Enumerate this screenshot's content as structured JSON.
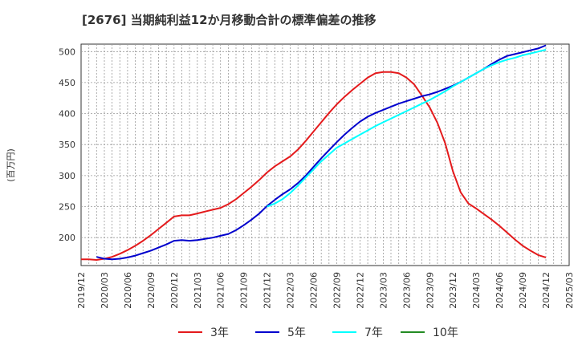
{
  "chart_data": {
    "type": "line",
    "title": "[2676]  当期純利益12か月移動合計の標準偏差の推移",
    "ylabel": "(百万円)",
    "xlabel": "",
    "ylim": [
      155,
      512
    ],
    "yticks": [
      200,
      250,
      300,
      350,
      400,
      450,
      500
    ],
    "x_tick_labels": [
      "2019/12",
      "2020/03",
      "2020/06",
      "2020/09",
      "2020/12",
      "2021/03",
      "2021/06",
      "2021/09",
      "2021/12",
      "2022/03",
      "2022/06",
      "2022/09",
      "2022/12",
      "2023/03",
      "2023/06",
      "2023/09",
      "2023/12",
      "2024/03",
      "2024/06",
      "2024/09",
      "2024/12",
      "2025/03"
    ],
    "grid": true,
    "legend_position": "bottom",
    "series": [
      {
        "name": "3年",
        "color": "#e41a1c",
        "points": [
          [
            "2019/12",
            165
          ],
          [
            "2020/01",
            165
          ],
          [
            "2020/02",
            164
          ],
          [
            "2020/03",
            166
          ],
          [
            "2020/04",
            169
          ],
          [
            "2020/05",
            174
          ],
          [
            "2020/06",
            180
          ],
          [
            "2020/07",
            187
          ],
          [
            "2020/08",
            195
          ],
          [
            "2020/09",
            204
          ],
          [
            "2020/10",
            214
          ],
          [
            "2020/11",
            224
          ],
          [
            "2020/12",
            234
          ],
          [
            "2021/01",
            236
          ],
          [
            "2021/02",
            236
          ],
          [
            "2021/03",
            239
          ],
          [
            "2021/04",
            242
          ],
          [
            "2021/05",
            245
          ],
          [
            "2021/06",
            248
          ],
          [
            "2021/07",
            254
          ],
          [
            "2021/08",
            262
          ],
          [
            "2021/09",
            272
          ],
          [
            "2021/10",
            282
          ],
          [
            "2021/11",
            293
          ],
          [
            "2021/12",
            305
          ],
          [
            "2022/01",
            315
          ],
          [
            "2022/02",
            323
          ],
          [
            "2022/03",
            331
          ],
          [
            "2022/04",
            342
          ],
          [
            "2022/05",
            356
          ],
          [
            "2022/06",
            371
          ],
          [
            "2022/07",
            386
          ],
          [
            "2022/08",
            401
          ],
          [
            "2022/09",
            415
          ],
          [
            "2022/10",
            427
          ],
          [
            "2022/11",
            438
          ],
          [
            "2022/12",
            448
          ],
          [
            "2023/01",
            458
          ],
          [
            "2023/02",
            465
          ],
          [
            "2023/03",
            467
          ],
          [
            "2023/04",
            467
          ],
          [
            "2023/05",
            465
          ],
          [
            "2023/06",
            458
          ],
          [
            "2023/07",
            447
          ],
          [
            "2023/08",
            429
          ],
          [
            "2023/09",
            410
          ],
          [
            "2023/10",
            385
          ],
          [
            "2023/11",
            352
          ],
          [
            "2023/12",
            307
          ],
          [
            "2024/01",
            273
          ],
          [
            "2024/02",
            255
          ],
          [
            "2024/03",
            247
          ],
          [
            "2024/04",
            238
          ],
          [
            "2024/05",
            229
          ],
          [
            "2024/06",
            219
          ],
          [
            "2024/07",
            208
          ],
          [
            "2024/08",
            197
          ],
          [
            "2024/09",
            187
          ],
          [
            "2024/10",
            179
          ],
          [
            "2024/11",
            172
          ],
          [
            "2024/12",
            168
          ]
        ]
      },
      {
        "name": "5年",
        "color": "#0000cd",
        "points": [
          [
            "2020/02",
            169
          ],
          [
            "2020/03",
            166
          ],
          [
            "2020/04",
            165
          ],
          [
            "2020/05",
            166
          ],
          [
            "2020/06",
            168
          ],
          [
            "2020/07",
            171
          ],
          [
            "2020/08",
            175
          ],
          [
            "2020/09",
            179
          ],
          [
            "2020/10",
            184
          ],
          [
            "2020/11",
            189
          ],
          [
            "2020/12",
            195
          ],
          [
            "2021/01",
            196
          ],
          [
            "2021/02",
            195
          ],
          [
            "2021/03",
            196
          ],
          [
            "2021/04",
            198
          ],
          [
            "2021/05",
            200
          ],
          [
            "2021/06",
            203
          ],
          [
            "2021/07",
            206
          ],
          [
            "2021/08",
            212
          ],
          [
            "2021/09",
            220
          ],
          [
            "2021/10",
            229
          ],
          [
            "2021/11",
            239
          ],
          [
            "2021/12",
            251
          ],
          [
            "2022/01",
            261
          ],
          [
            "2022/02",
            270
          ],
          [
            "2022/03",
            278
          ],
          [
            "2022/04",
            288
          ],
          [
            "2022/05",
            300
          ],
          [
            "2022/06",
            314
          ],
          [
            "2022/07",
            328
          ],
          [
            "2022/08",
            341
          ],
          [
            "2022/09",
            354
          ],
          [
            "2022/10",
            366
          ],
          [
            "2022/11",
            377
          ],
          [
            "2022/12",
            387
          ],
          [
            "2023/01",
            395
          ],
          [
            "2023/02",
            401
          ],
          [
            "2023/03",
            406
          ],
          [
            "2023/04",
            411
          ],
          [
            "2023/05",
            416
          ],
          [
            "2023/06",
            420
          ],
          [
            "2023/07",
            424
          ],
          [
            "2023/08",
            428
          ],
          [
            "2023/09",
            431
          ],
          [
            "2023/10",
            435
          ],
          [
            "2023/11",
            440
          ],
          [
            "2023/12",
            445
          ],
          [
            "2024/01",
            451
          ],
          [
            "2024/02",
            458
          ],
          [
            "2024/03",
            465
          ],
          [
            "2024/04",
            472
          ],
          [
            "2024/05",
            480
          ],
          [
            "2024/06",
            487
          ],
          [
            "2024/07",
            493
          ],
          [
            "2024/08",
            496
          ],
          [
            "2024/09",
            499
          ],
          [
            "2024/10",
            502
          ],
          [
            "2024/11",
            505
          ],
          [
            "2024/12",
            510
          ]
        ]
      },
      {
        "name": "7年",
        "color": "#00ffff",
        "points": [
          [
            "2021/12",
            250
          ],
          [
            "2022/01",
            255
          ],
          [
            "2022/02",
            262
          ],
          [
            "2022/03",
            272
          ],
          [
            "2022/04",
            284
          ],
          [
            "2022/05",
            297
          ],
          [
            "2022/06",
            310
          ],
          [
            "2022/07",
            323
          ],
          [
            "2022/08",
            334
          ],
          [
            "2022/09",
            345
          ],
          [
            "2022/10",
            352
          ],
          [
            "2022/11",
            359
          ],
          [
            "2022/12",
            366
          ],
          [
            "2023/01",
            373
          ],
          [
            "2023/02",
            380
          ],
          [
            "2023/03",
            386
          ],
          [
            "2023/04",
            392
          ],
          [
            "2023/05",
            398
          ],
          [
            "2023/06",
            404
          ],
          [
            "2023/07",
            410
          ],
          [
            "2023/08",
            416
          ],
          [
            "2023/09",
            422
          ],
          [
            "2023/10",
            429
          ],
          [
            "2023/11",
            436
          ],
          [
            "2023/12",
            444
          ],
          [
            "2024/01",
            451
          ],
          [
            "2024/02",
            458
          ],
          [
            "2024/03",
            465
          ],
          [
            "2024/04",
            472
          ],
          [
            "2024/05",
            478
          ],
          [
            "2024/06",
            483
          ],
          [
            "2024/07",
            487
          ],
          [
            "2024/08",
            490
          ],
          [
            "2024/09",
            494
          ],
          [
            "2024/10",
            497
          ],
          [
            "2024/11",
            500
          ],
          [
            "2024/12",
            503
          ]
        ]
      },
      {
        "name": "10年",
        "color": "#228b22",
        "points": []
      }
    ]
  }
}
